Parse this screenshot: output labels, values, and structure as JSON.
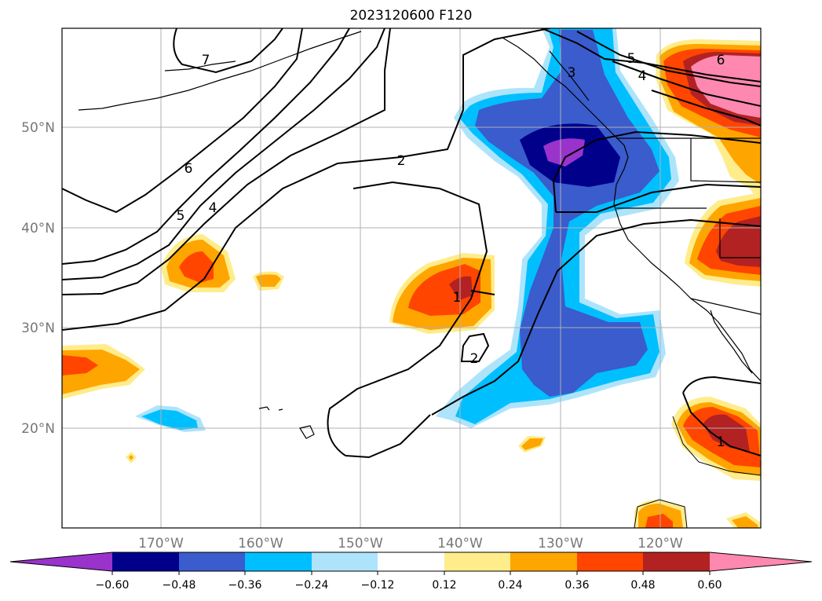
{
  "title": "2023120600 F120",
  "map": {
    "lat_labels": [
      "50°N",
      "40°N",
      "30°N",
      "20°N"
    ],
    "lon_labels": [
      "170°W",
      "160°W",
      "150°W",
      "140°W",
      "130°W",
      "120°W"
    ],
    "contour_labels": [
      "7",
      "6",
      "5",
      "4",
      "2",
      "1",
      "2",
      "3",
      "5",
      "4",
      "6",
      "1"
    ]
  },
  "colorbar": {
    "ticks": [
      "−0.60",
      "−0.48",
      "−0.36",
      "−0.24",
      "−0.12",
      "0.12",
      "0.24",
      "0.36",
      "0.48",
      "0.60"
    ],
    "colors": [
      "#9933cc",
      "#00008b",
      "#3a5ccc",
      "#00bfff",
      "#aee4fb",
      "#ffffff",
      "#ffec8b",
      "#ffa500",
      "#ff4500",
      "#b22222",
      "#ff88b0",
      "#ff88b0"
    ]
  },
  "palette": {
    "purple": "#9933cc",
    "navy": "#00008b",
    "royal": "#3a5ccc",
    "sky": "#00bfff",
    "pale_blue": "#aee4fb",
    "light_yellow": "#ffec8b",
    "orange": "#ffa500",
    "orange_red": "#ff4500",
    "firebrick": "#b22222",
    "pink": "#ff88b0"
  }
}
